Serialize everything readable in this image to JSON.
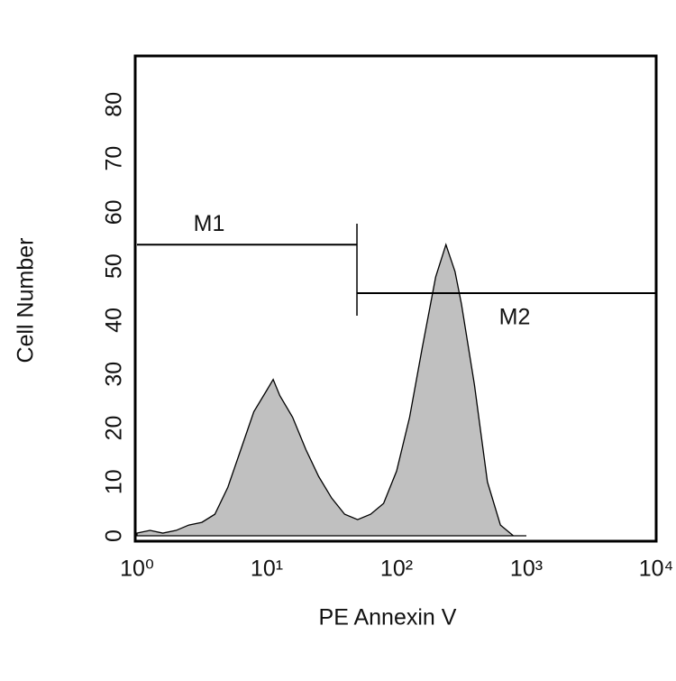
{
  "chart_data": {
    "type": "area",
    "x_label": "PE Annexin V",
    "y_label": "Cell Number",
    "x_scale": "log",
    "xlim": [
      1,
      10000
    ],
    "xticks": [
      {
        "value": 1,
        "label": "10⁰"
      },
      {
        "value": 10,
        "label": "10¹"
      },
      {
        "value": 100,
        "label": "10²"
      },
      {
        "value": 1000,
        "label": "10³"
      },
      {
        "value": 10000,
        "label": "10⁴"
      }
    ],
    "ylim": [
      -1,
      89
    ],
    "yticks": [
      0,
      10,
      20,
      30,
      40,
      50,
      60,
      70,
      80
    ],
    "grid": false,
    "x": [
      1,
      1.26,
      1.58,
      2,
      2.51,
      3.16,
      3.98,
      5.01,
      6.31,
      7.94,
      10,
      11.2,
      12.6,
      15.8,
      20,
      25.1,
      31.6,
      39.8,
      50.1,
      63.1,
      79.4,
      100,
      126,
      158,
      200,
      240,
      282,
      316,
      398,
      501,
      631,
      794,
      1000
    ],
    "values": [
      0.5,
      1,
      0.5,
      1,
      2,
      2.5,
      4,
      9,
      16,
      23,
      27,
      29,
      26,
      22,
      16,
      11,
      7,
      4,
      3,
      4,
      6,
      12,
      22,
      35,
      48,
      54,
      49,
      43,
      28,
      10,
      2,
      0,
      0
    ],
    "color": "#c0c0c0",
    "markers": [
      {
        "label": "M1",
        "range": [
          1,
          49.5
        ],
        "y": 54
      },
      {
        "label": "M2",
        "range": [
          49.5,
          10000
        ],
        "y": 45
      }
    ]
  }
}
